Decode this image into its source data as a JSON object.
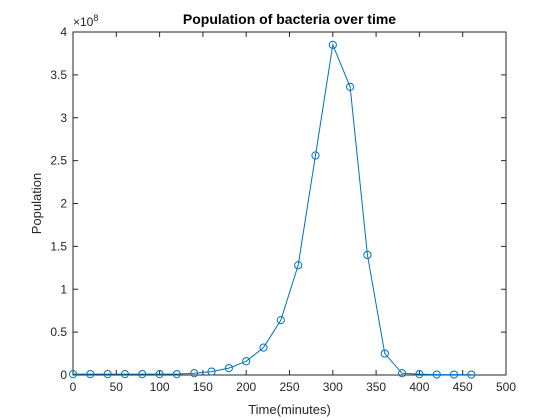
{
  "chart_data": {
    "type": "line",
    "title": "Population of bacteria over time",
    "xlabel": "Time(minutes)",
    "ylabel": "Population",
    "exponent_label": "×10",
    "exponent_power": "8",
    "xlim": [
      0,
      500
    ],
    "ylim": [
      0,
      4
    ],
    "y_scale": 100000000,
    "xticks": [
      "0",
      "50",
      "100",
      "150",
      "200",
      "250",
      "300",
      "350",
      "400",
      "450",
      "500"
    ],
    "yticks": [
      "0",
      "0.5",
      "1",
      "1.5",
      "2",
      "2.5",
      "3",
      "3.5",
      "4"
    ],
    "grid": false,
    "legend": false,
    "line_color": "#0072bd",
    "marker": "circle",
    "series": [
      {
        "x": [
          0,
          20,
          40,
          60,
          80,
          100,
          120,
          140,
          160,
          180,
          200,
          220,
          240,
          260,
          280,
          300,
          320,
          340,
          360,
          380,
          400,
          420,
          440,
          460
        ],
        "y": [
          0.01,
          0.01,
          0.01,
          0.01,
          0.01,
          0.01,
          0.01,
          0.02,
          0.04,
          0.08,
          0.16,
          0.32,
          0.64,
          1.28,
          2.56,
          3.85,
          3.36,
          1.4,
          0.25,
          0.02,
          0.01,
          0.005,
          0.005,
          0.005
        ]
      }
    ]
  }
}
